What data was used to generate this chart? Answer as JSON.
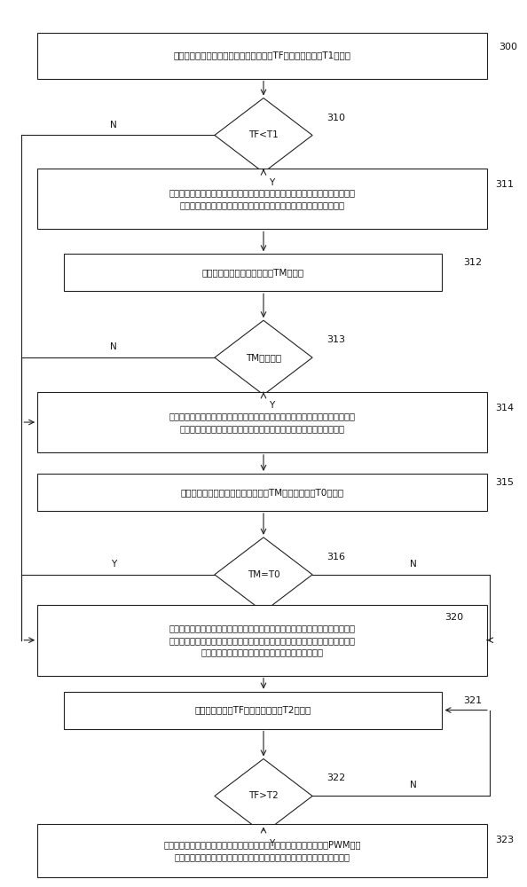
{
  "bg_color": "#ffffff",
  "line_color": "#222222",
  "text_color": "#111111",
  "font_size": 7.5,
  "small_font_size": 7.2,
  "box300_text": "检测并比较通过燃料电池电堆冷却液温度TF和第一阀值温度T1的大小",
  "box311_text": "分别开启第一、第二、第四三通电磁阀的第一阀门和水泵（或保持开启状态），\n关闭第三三通电磁阀，使步进电机驱动磁质储热器进入永磁体磁场空腔",
  "box312_text": "实时监测磁质储热器出口温度TM的变化",
  "dia313_text": "TM不再升高",
  "box314_text": "分别开启第一、第三三通电磁阀的第一阀门和水泵（或保持开启状态），关闭第\n二、第四三通电磁阀，使步进电机驱动磁质储热器推出永磁体磁场空腔",
  "box315_text": "实时监测并比较磁质储热器出口温度TM的与环境温度T0的大小",
  "box320_text": "分别开启第一、第二三通电磁阀的第二阀门和第四三通电磁阀的第一阀门及水泵\n（或保持开启状态），关闭第三三通电磁阀，使步进电机驱动磁质储热器退出永\n磁体磁场空腔后关闭步进电机，进入正常热管理模式",
  "box321_text": "开始检测并比较TF和第二阀值温度T2的大小",
  "box323_text": "分别开启第一、第二、第三和第四三通电磁阀的第二阀门及水泵，通过PWM控制\n机制调控水泵电机和散热器风扇电机的转速以控制燃料电池电堆的工作温度",
  "dia310_text": "TF<T1",
  "dia316_text": "TM=T0",
  "dia322_text": "TF>T2"
}
